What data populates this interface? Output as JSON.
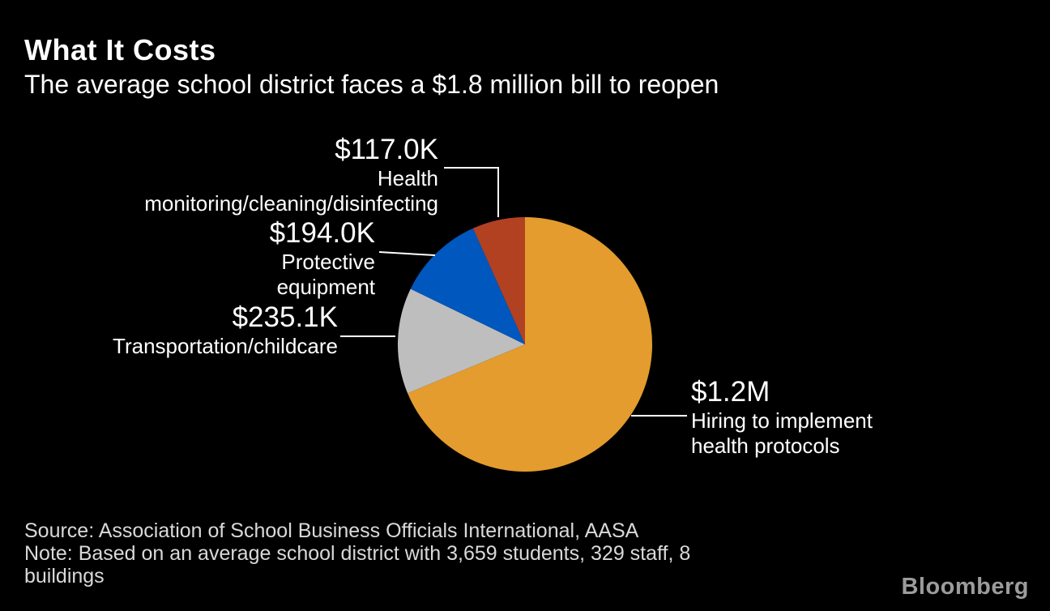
{
  "header": {
    "title": "What It Costs",
    "subtitle": "The average school district faces a $1.8 million bill to reopen"
  },
  "chart_data": {
    "type": "pie",
    "title": "What It Costs",
    "subtitle": "The average school district faces a $1.8 million bill to reopen",
    "total_value_usd": 1746100,
    "start_angle_deg": 0,
    "direction": "clockwise",
    "background_color": "#000000",
    "label_color": "#ffffff",
    "slices": [
      {
        "label": "Hiring to implement\nhealth protocols",
        "amount": "$1.2M",
        "value": 1200000,
        "color": "#E39C2D"
      },
      {
        "label": "Transportation/childcare",
        "amount": "$235.1K",
        "value": 235100,
        "color": "#BEBEBE"
      },
      {
        "label": "Protective\nequipment",
        "amount": "$194.0K",
        "value": 194000,
        "color": "#0057BE"
      },
      {
        "label": "Health\nmonitoring/cleaning/disinfecting",
        "amount": "$117.0K",
        "value": 117000,
        "color": "#B24122"
      }
    ]
  },
  "footer": {
    "source": "Source: Association of School Business Officials International, AASA",
    "note": "Note: Based on an average school district with 3,659 students, 329 staff, 8\nbuildings",
    "brand": "Bloomberg"
  }
}
